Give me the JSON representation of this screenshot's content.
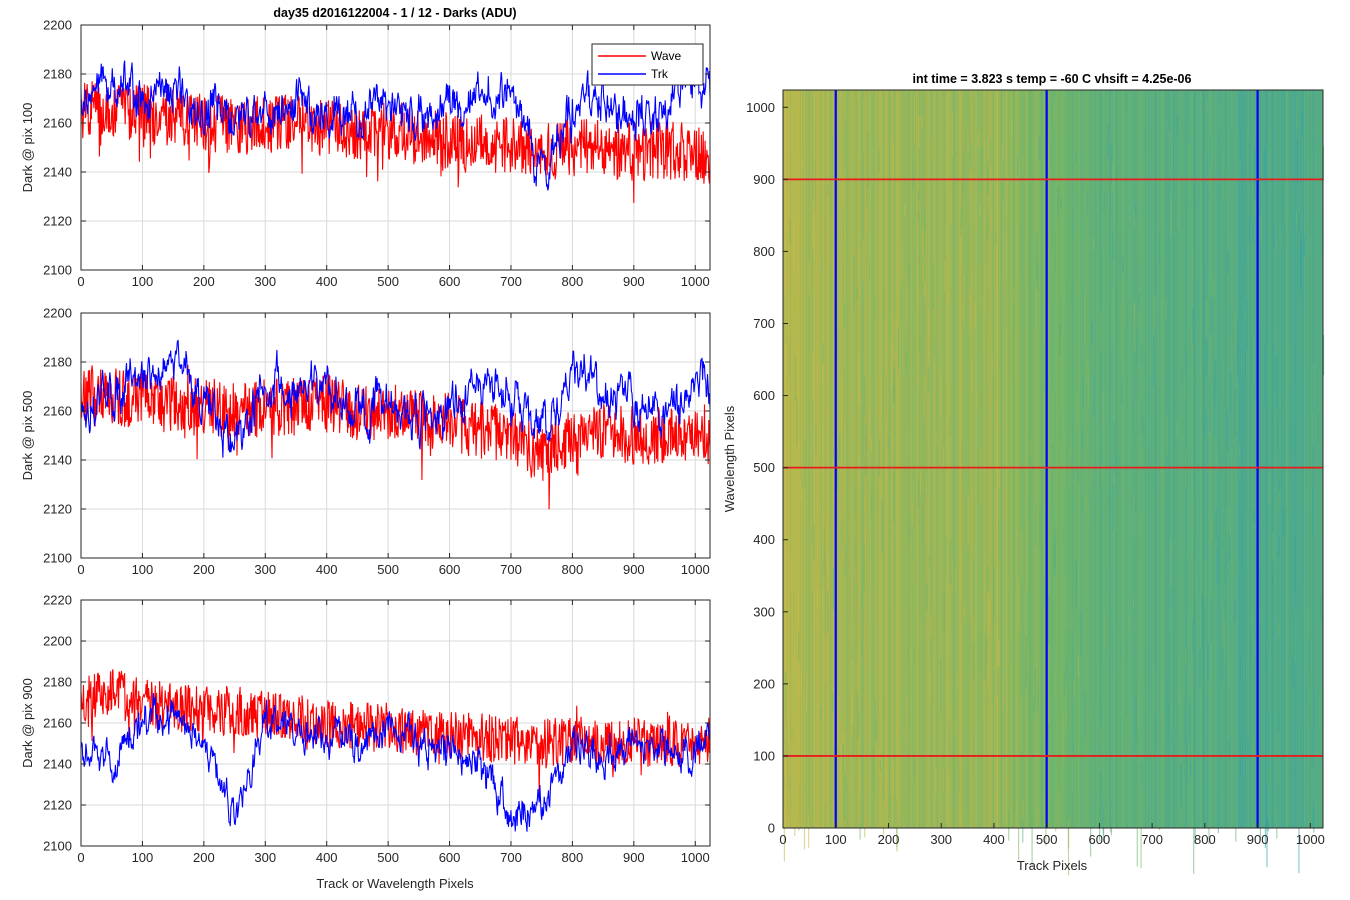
{
  "figure_title": "day35 d2016122004 - 1 / 12 - Darks (ADU)",
  "legend": {
    "entries": [
      "Wave",
      "Trk"
    ],
    "position": "top-right"
  },
  "colors": {
    "wave": "#ff0000",
    "trk": "#0000ff",
    "grid": "#d9d9d9",
    "heat_high": "#c9b845",
    "heat_mid": "#6fb56a",
    "heat_low": "#1f9ab8"
  },
  "shared_xlabel": "Track or Wavelength Pixels",
  "chart_data": [
    {
      "type": "line",
      "ylabel": "Dark @ pix 100",
      "xlim": [
        0,
        1024
      ],
      "ylim": [
        2100,
        2200
      ],
      "xticks": [
        0,
        100,
        200,
        300,
        400,
        500,
        600,
        700,
        800,
        900,
        1000
      ],
      "yticks": [
        2100,
        2120,
        2140,
        2160,
        2180,
        2200
      ],
      "grid": true,
      "x": [
        0,
        50,
        100,
        150,
        200,
        250,
        300,
        350,
        400,
        450,
        500,
        550,
        600,
        650,
        700,
        750,
        800,
        850,
        900,
        950,
        1000,
        1024
      ],
      "series": [
        {
          "name": "Wave",
          "values": [
            2165,
            2166,
            2164,
            2162,
            2160,
            2159,
            2159,
            2160,
            2158,
            2156,
            2157,
            2154,
            2153,
            2152,
            2151,
            2148,
            2150,
            2150,
            2148,
            2149,
            2148,
            2146
          ]
        },
        {
          "name": "Trk",
          "values": [
            2170,
            2178,
            2170,
            2172,
            2165,
            2162,
            2163,
            2168,
            2166,
            2164,
            2168,
            2163,
            2165,
            2172,
            2174,
            2140,
            2165,
            2170,
            2160,
            2166,
            2178,
            2168
          ]
        }
      ]
    },
    {
      "type": "line",
      "ylabel": "Dark @ pix 500",
      "xlim": [
        0,
        1024
      ],
      "ylim": [
        2100,
        2200
      ],
      "xticks": [
        0,
        100,
        200,
        300,
        400,
        500,
        600,
        700,
        800,
        900,
        1000
      ],
      "yticks": [
        2100,
        2120,
        2140,
        2160,
        2180,
        2200
      ],
      "grid": true,
      "x": [
        0,
        50,
        100,
        150,
        200,
        250,
        300,
        350,
        400,
        450,
        500,
        550,
        600,
        650,
        700,
        750,
        800,
        850,
        900,
        950,
        1000,
        1024
      ],
      "series": [
        {
          "name": "Wave",
          "values": [
            2168,
            2166,
            2165,
            2163,
            2162,
            2160,
            2161,
            2162,
            2163,
            2160,
            2160,
            2157,
            2156,
            2152,
            2150,
            2142,
            2150,
            2152,
            2150,
            2150,
            2152,
            2150
          ]
        },
        {
          "name": "Trk",
          "values": [
            2160,
            2168,
            2172,
            2185,
            2162,
            2148,
            2172,
            2168,
            2170,
            2162,
            2163,
            2158,
            2160,
            2175,
            2165,
            2150,
            2178,
            2168,
            2162,
            2160,
            2168,
            2170
          ]
        }
      ]
    },
    {
      "type": "line",
      "ylabel": "Dark @ pix 900",
      "xlim": [
        0,
        1024
      ],
      "ylim": [
        2100,
        2220
      ],
      "xticks": [
        0,
        100,
        200,
        300,
        400,
        500,
        600,
        700,
        800,
        900,
        1000
      ],
      "yticks": [
        2100,
        2120,
        2140,
        2160,
        2180,
        2200,
        2220
      ],
      "grid": true,
      "x": [
        0,
        50,
        100,
        150,
        200,
        250,
        300,
        350,
        400,
        450,
        500,
        550,
        600,
        650,
        700,
        750,
        800,
        850,
        900,
        950,
        1000,
        1024
      ],
      "series": [
        {
          "name": "Wave",
          "values": [
            2172,
            2175,
            2170,
            2168,
            2166,
            2166,
            2164,
            2162,
            2160,
            2158,
            2158,
            2155,
            2154,
            2153,
            2152,
            2150,
            2152,
            2150,
            2151,
            2150,
            2150,
            2152
          ]
        },
        {
          "name": "Trk",
          "values": [
            2145,
            2140,
            2160,
            2162,
            2150,
            2112,
            2165,
            2152,
            2155,
            2150,
            2160,
            2148,
            2150,
            2140,
            2115,
            2120,
            2150,
            2145,
            2148,
            2150,
            2148,
            2150
          ]
        }
      ]
    },
    {
      "type": "heatmap",
      "title": "int time = 3.823 s   temp = -60 C   vhsift = 4.25e-06",
      "xlabel": "Track Pixels",
      "ylabel": "Wavelength Pixels",
      "xlim": [
        0,
        1024
      ],
      "ylim": [
        0,
        1024
      ],
      "xticks": [
        0,
        100,
        200,
        300,
        400,
        500,
        600,
        700,
        800,
        900,
        1000
      ],
      "yticks": [
        0,
        100,
        200,
        300,
        400,
        500,
        600,
        700,
        800,
        900,
        1000
      ],
      "column_profile": {
        "x": [
          0,
          100,
          200,
          300,
          400,
          500,
          600,
          700,
          800,
          900,
          1000,
          1024
        ],
        "level": [
          0.9,
          0.82,
          0.78,
          0.78,
          0.8,
          0.62,
          0.5,
          0.45,
          0.42,
          0.35,
          0.38,
          0.36
        ]
      },
      "vertical_markers": [
        100,
        500,
        900
      ],
      "horizontal_markers": [
        100,
        500,
        900
      ]
    }
  ]
}
